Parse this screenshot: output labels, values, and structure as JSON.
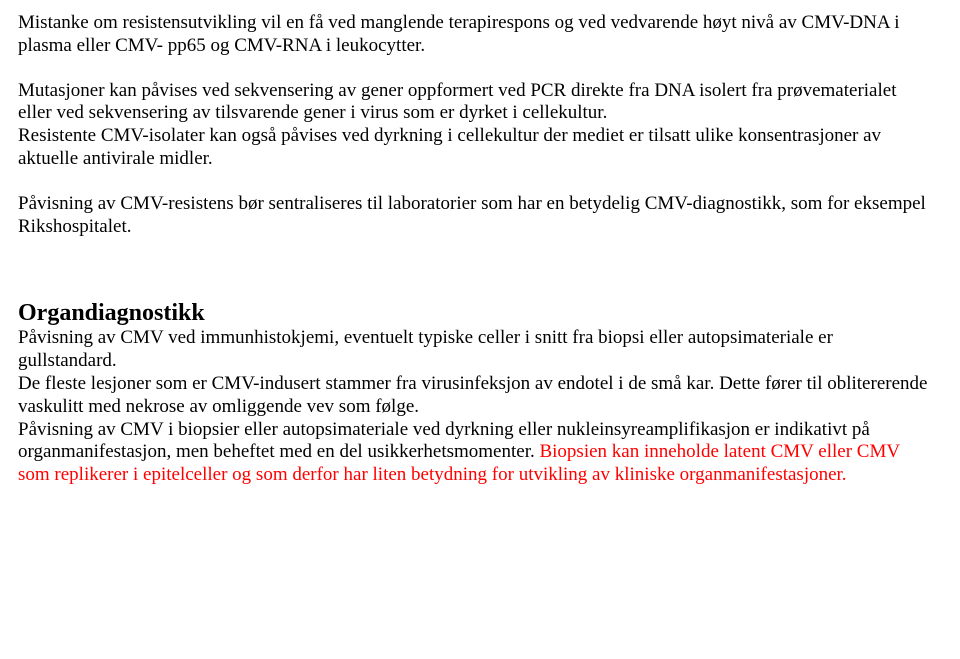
{
  "p1": "Mistanke om resistensutvikling vil en få ved manglende terapirespons og ved  vedvarende høyt nivå av CMV-DNA i plasma eller CMV- pp65 og CMV-RNA i leukocytter.",
  "p2": "Mutasjoner kan påvises ved sekvensering av gener oppformert ved PCR direkte fra DNA isolert fra prøvematerialet  eller  ved sekvensering av tilsvarende gener i virus som er dyrket i cellekultur.",
  "p3": "Resistente CMV-isolater  kan også påvises ved dyrkning i cellekultur der mediet  er  tilsatt ulike konsentrasjoner av aktuelle antivirale midler.",
  "p4": "Påvisning av CMV-resistens bør sentraliseres til laboratorier som har en betydelig CMV-diagnostikk, som for eksempel Rikshospitalet.",
  "h1": "Organdiagnostikk",
  "p5": "Påvisning av CMV ved immunhistokjemi, eventuelt typiske celler i snitt fra biopsi eller autopsimateriale er gullstandard.",
  "p6": "De fleste lesjoner som er CMV-indusert stammer fra virusinfeksjon av endotel i de små kar. Dette fører til oblitererende vaskulitt med nekrose av omliggende vev som følge.",
  "p7a": "Påvisning av CMV i biopsier eller autopsimateriale ved dyrkning eller nukleinsyreamplifikasjon er indikativt på organmanifestasjon, men beheftet med en del usikkerhetsmomenter.",
  "p7b": "  Biopsien kan inneholde latent CMV eller CMV som replikerer i epitelceller og som derfor har liten betydning for utvikling av kliniske organmanifestasjoner.",
  "colors": {
    "text": "#000000",
    "accent": "#ff0000",
    "background": "#ffffff"
  },
  "typography": {
    "body_font": "Times New Roman",
    "body_size_pt": 14,
    "heading_size_pt": 18,
    "heading_weight": "bold"
  }
}
